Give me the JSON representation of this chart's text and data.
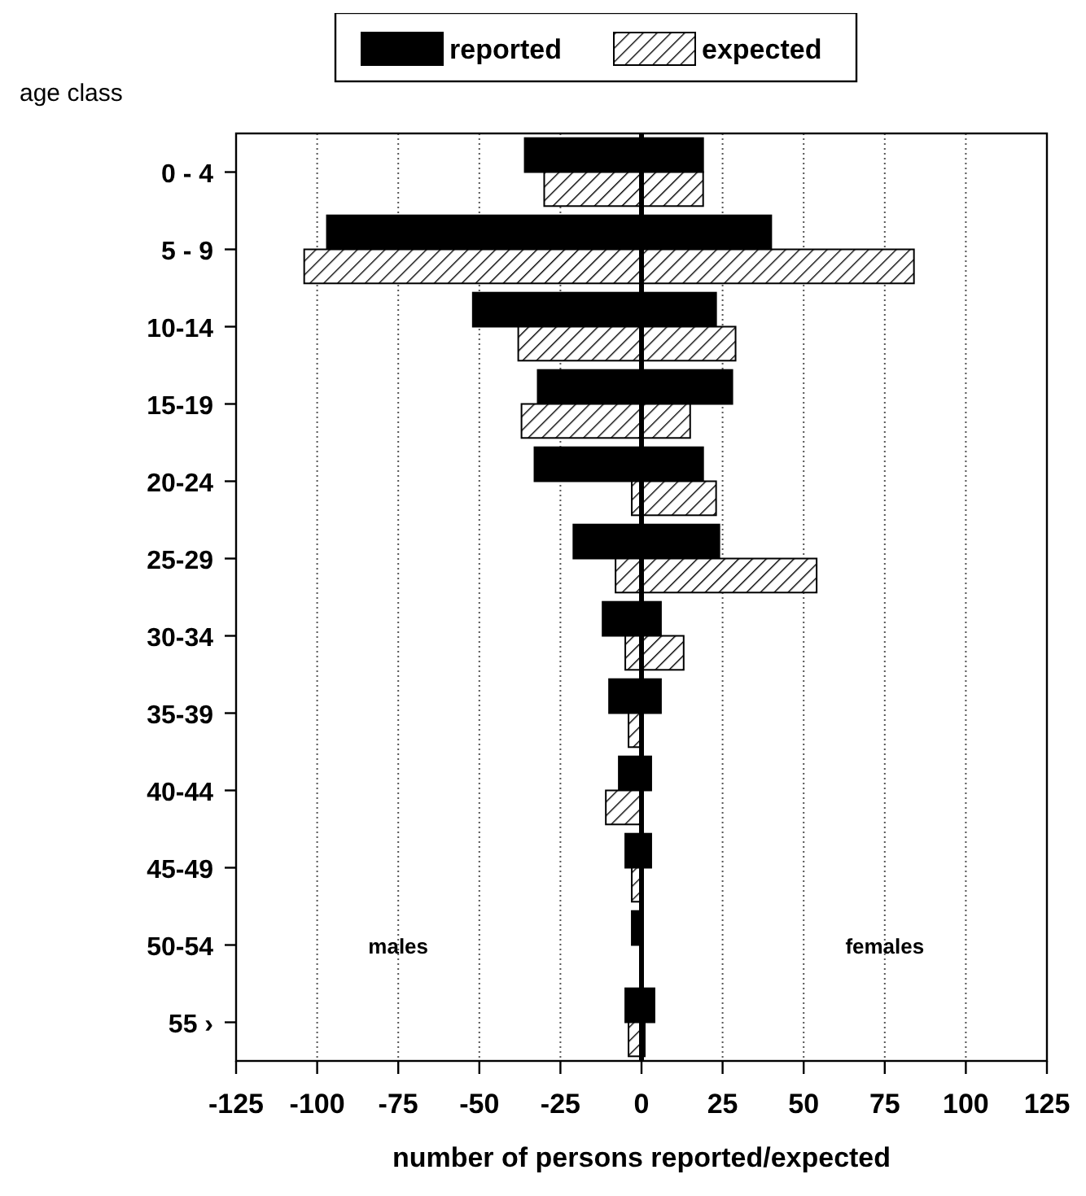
{
  "chart_data": {
    "type": "bar",
    "orientation": "horizontal",
    "xlabel": "number of persons reported/expected",
    "ylabel": "age class",
    "categories": [
      "0 - 4",
      "5 - 9",
      "10-14",
      "15-19",
      "20-24",
      "25-29",
      "30-34",
      "35-39",
      "40-44",
      "45-49",
      "50-54",
      "55 ›"
    ],
    "series": [
      {
        "name": "reported",
        "color": "#000000",
        "base": [
          -36,
          -97,
          -52,
          -32,
          -33,
          -21,
          -12,
          -10,
          -7,
          -5,
          -3,
          -5
        ],
        "values": [
          55,
          137,
          75,
          60,
          52,
          45,
          18,
          16,
          10,
          8,
          3,
          9
        ]
      },
      {
        "name": "expected",
        "color": "#000000",
        "base": [
          -30,
          -104,
          -38,
          -37,
          -3,
          -8,
          -5,
          -4,
          -11,
          -3,
          null,
          -4
        ],
        "values": [
          49,
          188,
          67,
          52,
          26,
          62,
          18,
          4,
          11,
          3,
          null,
          5
        ]
      }
    ],
    "xlim": [
      -125,
      125
    ],
    "xticks": [
      -125,
      -100,
      -75,
      -50,
      -25,
      0,
      25,
      50,
      75,
      100,
      125
    ],
    "grid": "x",
    "legend": "top",
    "ref_lines": [
      {
        "axis": "x",
        "value": 0
      }
    ],
    "annotations": [
      "males",
      "females"
    ]
  }
}
